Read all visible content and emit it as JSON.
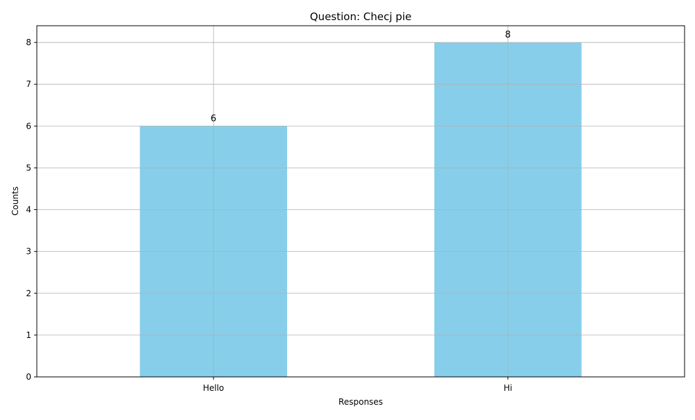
{
  "chart_data": {
    "type": "bar",
    "title": "Question: Checj pie",
    "xlabel": "Responses",
    "ylabel": "Counts",
    "categories": [
      "Hello",
      "Hi"
    ],
    "values": [
      6,
      8
    ],
    "data_labels": [
      "6",
      "8"
    ],
    "ylim": [
      0,
      8.4
    ],
    "yticks": [
      0,
      1,
      2,
      3,
      4,
      5,
      6,
      7,
      8
    ],
    "grid": true,
    "bar_color": "#87ceeb",
    "grid_color": "#b0b0b0"
  }
}
